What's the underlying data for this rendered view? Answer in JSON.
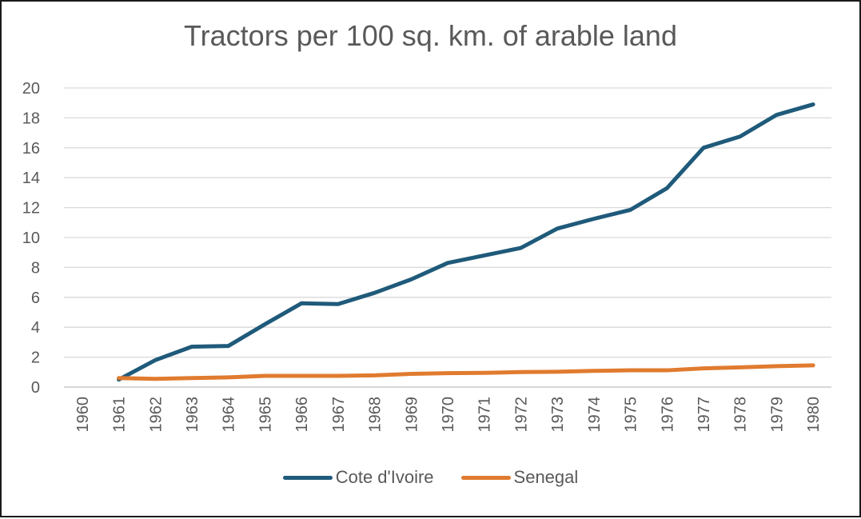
{
  "chart_data": {
    "type": "line",
    "title": "Tractors per 100 sq. km. of arable land",
    "xlabel": "",
    "ylabel": "",
    "ylim": [
      0,
      20
    ],
    "yticks": [
      "0",
      "2",
      "4",
      "6",
      "8",
      "10",
      "12",
      "14",
      "16",
      "18",
      "20"
    ],
    "categories": [
      "1960",
      "1961",
      "1962",
      "1963",
      "1964",
      "1965",
      "1966",
      "1967",
      "1968",
      "1969",
      "1970",
      "1971",
      "1972",
      "1973",
      "1974",
      "1975",
      "1976",
      "1977",
      "1978",
      "1979",
      "1980"
    ],
    "series": [
      {
        "name": "Cote d'Ivoire",
        "color": "#1f5a7a",
        "values": [
          null,
          0.5,
          1.8,
          2.7,
          2.75,
          4.2,
          5.6,
          5.55,
          6.3,
          7.2,
          8.3,
          8.8,
          9.3,
          10.6,
          11.25,
          11.85,
          13.3,
          16.0,
          16.75,
          18.2,
          18.9
        ]
      },
      {
        "name": "Senegal",
        "color": "#e07b2f",
        "values": [
          null,
          0.6,
          0.55,
          0.6,
          0.65,
          0.75,
          0.75,
          0.75,
          0.78,
          0.88,
          0.93,
          0.95,
          1.0,
          1.02,
          1.08,
          1.12,
          1.12,
          1.25,
          1.32,
          1.4,
          1.45
        ]
      }
    ],
    "legend_position": "bottom",
    "grid": true
  }
}
